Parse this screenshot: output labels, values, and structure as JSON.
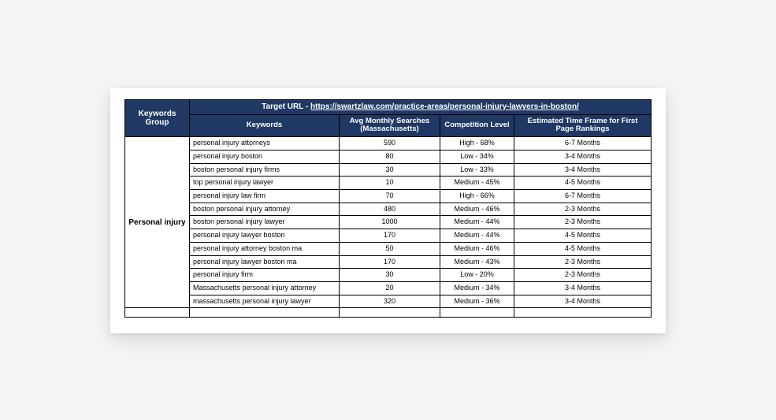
{
  "colors": {
    "header_bg": "#1f3864",
    "header_text": "#ffffff",
    "border": "#000000",
    "page_bg": "#f5f5f5",
    "card_bg": "#ffffff"
  },
  "url_row": {
    "prefix": "Target URL - ",
    "url_text": "https://swartzlaw.com/practice-areas/personal-injury-lawyers-in-boston/",
    "url_href": "https://swartzlaw.com/practice-areas/personal-injury-lawyers-in-boston/"
  },
  "headers": {
    "group": "Keywords Group",
    "keywords": "Keywords",
    "avg": "Avg Monthly Searches (Massachusetts)",
    "competition": "Competition Level",
    "timeframe": "Estimated Time Frame for First Page Rankings"
  },
  "group_label": "Personal injury",
  "rows": [
    {
      "keyword": "personal injury attorneys",
      "avg": "590",
      "competition": "High - 68%",
      "timeframe": "6-7 Months"
    },
    {
      "keyword": "personal injury boston",
      "avg": "80",
      "competition": "Low - 34%",
      "timeframe": "3-4 Months"
    },
    {
      "keyword": "boston personal injury firms",
      "avg": "30",
      "competition": "Low - 33%",
      "timeframe": "3-4 Months"
    },
    {
      "keyword": "top personal injury lawyer",
      "avg": "10",
      "competition": "Medium - 45%",
      "timeframe": "4-5 Months"
    },
    {
      "keyword": "personal injury law firm",
      "avg": "70",
      "competition": "High - 66%",
      "timeframe": "6-7 Months"
    },
    {
      "keyword": "boston personal injury attorney",
      "avg": "480",
      "competition": "Medium - 46%",
      "timeframe": "2-3 Months"
    },
    {
      "keyword": "boston personal injury lawyer",
      "avg": "1000",
      "competition": "Medium - 44%",
      "timeframe": "2-3 Months"
    },
    {
      "keyword": "personal injury lawyer boston",
      "avg": "170",
      "competition": "Medium - 44%",
      "timeframe": "4-5 Months"
    },
    {
      "keyword": "personal injury attorney boston ma",
      "avg": "50",
      "competition": "Medium - 46%",
      "timeframe": "4-5 Months"
    },
    {
      "keyword": "personal injury lawyer boston ma",
      "avg": "170",
      "competition": "Medium - 43%",
      "timeframe": "2-3 Months"
    },
    {
      "keyword": "personal injury firm",
      "avg": "30",
      "competition": "Low - 20%",
      "timeframe": "2-3 Months"
    },
    {
      "keyword": "Massachusetts personal injury attorney",
      "avg": "20",
      "competition": "Medium - 34%",
      "timeframe": "3-4 Months"
    },
    {
      "keyword": "massachusetts personal injury lawyer",
      "avg": "320",
      "competition": "Medium - 36%",
      "timeframe": "3-4 Months"
    }
  ]
}
